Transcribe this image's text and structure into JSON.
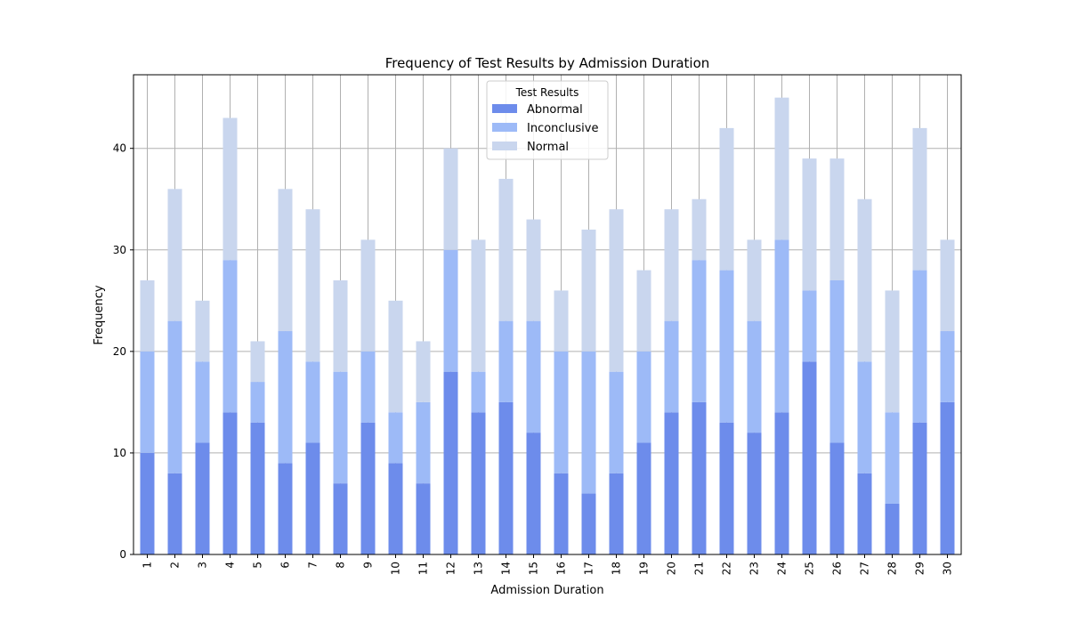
{
  "chart_data": {
    "type": "bar",
    "stacked": true,
    "title": "Frequency of Test Results by Admission Duration",
    "xlabel": "Admission Duration",
    "ylabel": "Frequency",
    "ylim": [
      0,
      47.25
    ],
    "yticks": [
      0,
      10,
      20,
      30,
      40
    ],
    "grid": true,
    "legend": {
      "title": "Test Results",
      "placement": "top-center"
    },
    "categories": [
      "1",
      "2",
      "3",
      "4",
      "5",
      "6",
      "7",
      "8",
      "9",
      "10",
      "11",
      "12",
      "13",
      "14",
      "15",
      "16",
      "17",
      "18",
      "19",
      "20",
      "21",
      "22",
      "23",
      "24",
      "25",
      "26",
      "27",
      "28",
      "29",
      "30"
    ],
    "series": [
      {
        "name": "Abnormal",
        "color": "#6d8ceb",
        "values": [
          10,
          8,
          11,
          14,
          13,
          9,
          11,
          7,
          13,
          9,
          7,
          18,
          14,
          15,
          12,
          8,
          6,
          8,
          11,
          14,
          15,
          13,
          12,
          14,
          19,
          11,
          8,
          5,
          13,
          15
        ]
      },
      {
        "name": "Inconclusive",
        "color": "#9dbaf7",
        "values": [
          10,
          15,
          8,
          15,
          4,
          13,
          8,
          11,
          7,
          5,
          8,
          12,
          4,
          8,
          11,
          12,
          14,
          10,
          9,
          9,
          14,
          15,
          11,
          17,
          7,
          16,
          11,
          9,
          15,
          7
        ]
      },
      {
        "name": "Normal",
        "color": "#c9d6ee",
        "values": [
          7,
          13,
          6,
          14,
          4,
          14,
          15,
          9,
          11,
          11,
          6,
          10,
          13,
          14,
          10,
          6,
          12,
          16,
          8,
          11,
          6,
          14,
          8,
          14,
          13,
          12,
          16,
          12,
          14,
          9
        ]
      }
    ]
  }
}
